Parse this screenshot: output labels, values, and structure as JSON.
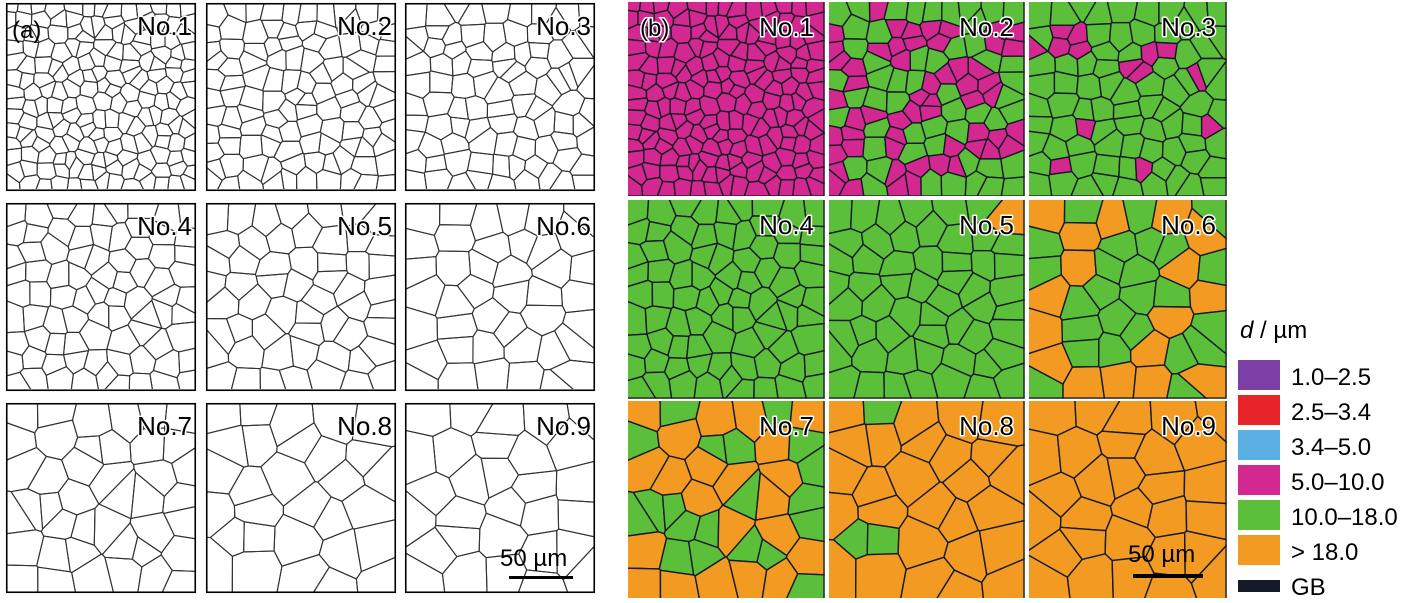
{
  "panel_a": {
    "label": "(a)",
    "tiles": [
      {
        "label": "No.1"
      },
      {
        "label": "No.2"
      },
      {
        "label": "No.3"
      },
      {
        "label": "No.4"
      },
      {
        "label": "No.5"
      },
      {
        "label": "No.6"
      },
      {
        "label": "No.7"
      },
      {
        "label": "No.8"
      },
      {
        "label": "No.9"
      }
    ],
    "scale_bar": "50 µm"
  },
  "panel_b": {
    "label": "(b)",
    "tiles": [
      {
        "label": "No.1"
      },
      {
        "label": "No.2"
      },
      {
        "label": "No.3"
      },
      {
        "label": "No.4"
      },
      {
        "label": "No.5"
      },
      {
        "label": "No.6"
      },
      {
        "label": "No.7"
      },
      {
        "label": "No.8"
      },
      {
        "label": "No.9"
      }
    ],
    "scale_bar": "50 µm"
  },
  "legend": {
    "title_var": "d",
    "title_unit": " / µm",
    "items": [
      {
        "label": "1.0–2.5",
        "color": "#7b3fa6"
      },
      {
        "label": "2.5–3.4",
        "color": "#e8242b"
      },
      {
        "label": "3.4–5.0",
        "color": "#5aafe3"
      },
      {
        "label": "5.0–10.0",
        "color": "#d2288f"
      },
      {
        "label": "10.0–18.0",
        "color": "#5cbf3a"
      },
      {
        "label": "> 18.0",
        "color": "#f39a22"
      },
      {
        "label": "GB",
        "color": "#151a26"
      }
    ]
  }
}
